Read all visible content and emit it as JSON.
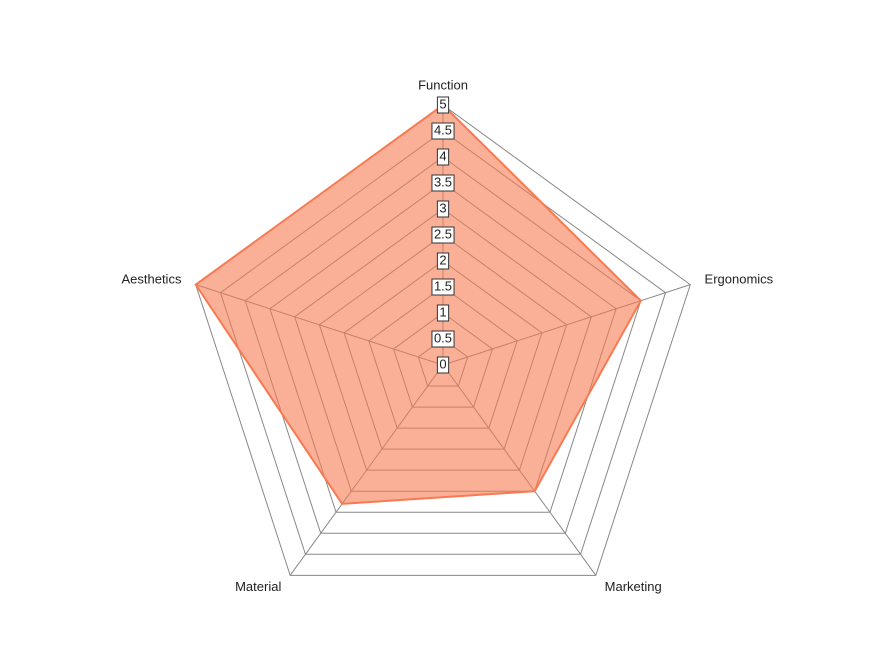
{
  "chart_data": {
    "type": "radar",
    "categories": [
      "Function",
      "Ergonomics",
      "Marketing",
      "Material",
      "Aesthetics"
    ],
    "series": [
      {
        "color": "#f77a52",
        "values": [
          5,
          4,
          3,
          3.3,
          5
        ]
      }
    ],
    "ylim": [
      0,
      5
    ],
    "yticks": [
      0,
      0.5,
      1,
      1.5,
      2,
      2.5,
      3,
      3.5,
      4,
      4.5,
      5
    ],
    "grid": true
  }
}
